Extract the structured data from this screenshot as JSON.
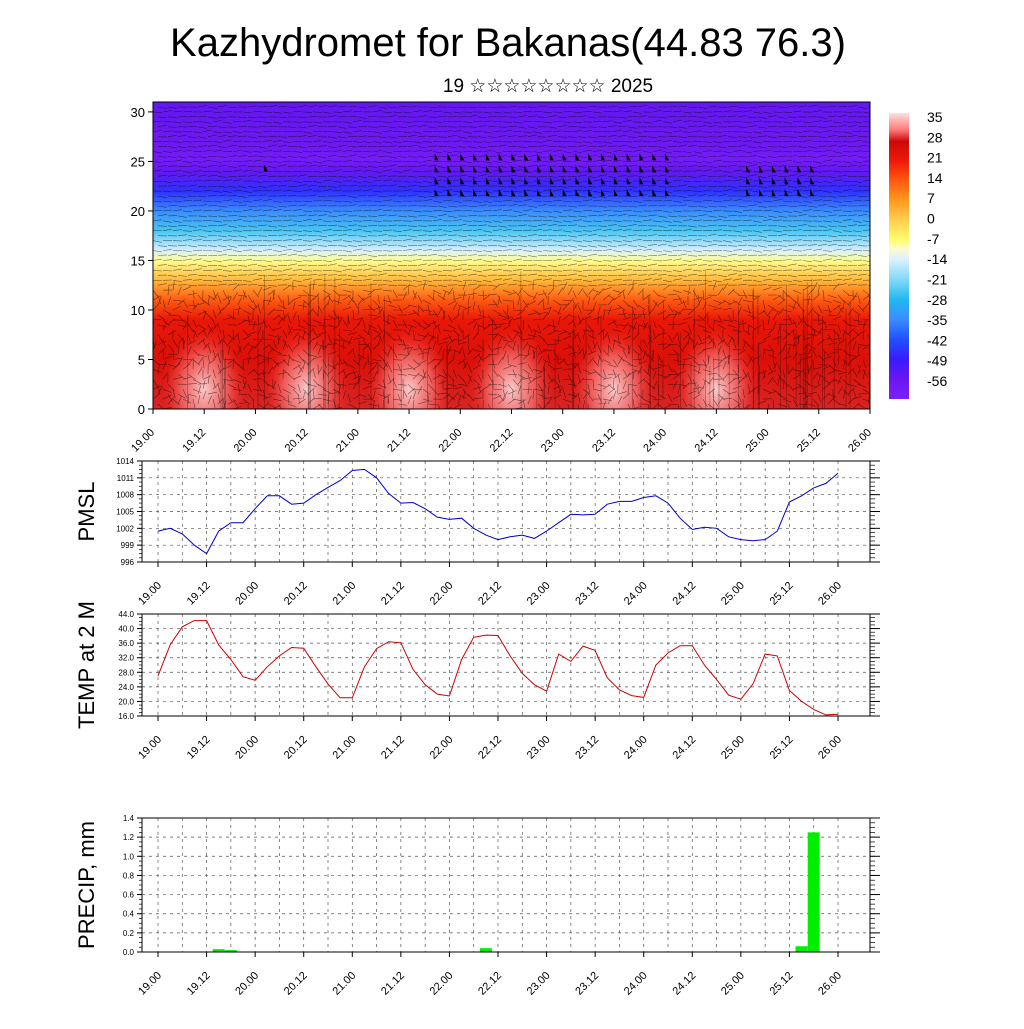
{
  "title": "Kazhydromet for Bakanas(44.83 76.3)",
  "subtitle": "19 ☆☆☆☆☆☆☆☆ 2025",
  "time_ticks": [
    "19.00",
    "19.12",
    "20.00",
    "20.12",
    "21.00",
    "21.12",
    "22.00",
    "22.12",
    "23.00",
    "23.12",
    "24.00",
    "24.12",
    "25.00",
    "25.12",
    "26.00"
  ],
  "chart_data": [
    {
      "type": "heatmap",
      "name": "cross-section",
      "y_ticks": [
        "0",
        "5",
        "10",
        "15",
        "20",
        "25",
        "30"
      ],
      "ylim": [
        0,
        31
      ],
      "colorbar": {
        "labels": [
          "35",
          "28",
          "21",
          "14",
          "7",
          "0",
          "-7",
          "-14",
          "-21",
          "-28",
          "-35",
          "-42",
          "-49",
          "-56"
        ],
        "range": [
          -63,
          38
        ]
      },
      "temp_profile": [
        {
          "height": 0,
          "value": 29
        },
        {
          "height": 5,
          "value": 25
        },
        {
          "height": 9,
          "value": 22
        },
        {
          "height": 11,
          "value": 14
        },
        {
          "height": 13,
          "value": 3
        },
        {
          "height": 15,
          "value": -8
        },
        {
          "height": 16,
          "value": -14
        },
        {
          "height": 18,
          "value": -25
        },
        {
          "height": 20,
          "value": -35
        },
        {
          "height": 22,
          "value": -46
        },
        {
          "height": 24,
          "value": -55
        },
        {
          "height": 25,
          "value": -60
        },
        {
          "height": 27,
          "value": -57
        },
        {
          "height": 31,
          "value": -55
        }
      ],
      "colors": {
        "warm": "#e00000",
        "cold": "#5a10e0",
        "mid": "#ffff90"
      }
    },
    {
      "type": "line",
      "ylabel": "PMSL",
      "y_ticks": [
        "1014",
        "1011",
        "1008",
        "1005",
        "1002",
        "999",
        "996"
      ],
      "ylim": [
        996,
        1014
      ],
      "color": "#0000cc",
      "x": [
        0,
        3,
        6,
        9,
        12,
        15,
        18,
        21,
        24,
        27,
        30,
        33,
        36,
        39,
        42,
        45,
        48,
        51,
        54,
        57,
        60,
        63,
        66,
        69,
        72,
        75,
        78,
        81,
        84,
        87,
        90,
        93,
        96,
        99,
        102,
        105,
        108,
        111,
        114,
        117,
        120,
        123,
        126,
        129,
        132,
        135,
        138,
        141,
        144,
        147,
        150,
        153,
        156,
        159,
        162,
        165,
        168
      ],
      "values": [
        1001.5,
        1002,
        1001,
        999,
        997.5,
        1001.5,
        1003,
        1003,
        1005.5,
        1007.8,
        1007.8,
        1006.3,
        1006.5,
        1008,
        1009.3,
        1010.5,
        1012.3,
        1012.5,
        1011,
        1008.2,
        1006.5,
        1006.6,
        1005.5,
        1004,
        1003.6,
        1003.8,
        1002,
        1000.8,
        1000,
        1000.5,
        1000.8,
        1000.2,
        1001.5,
        1003,
        1004.5,
        1004.4,
        1004.5,
        1006.3,
        1006.8,
        1006.8,
        1007.5,
        1007.8,
        1006.5,
        1003.8,
        1001.8,
        1002.2,
        1002,
        1000.5,
        1000,
        999.8,
        1000,
        1001.5,
        1006.7,
        1007.8,
        1009.2,
        1010,
        1011.8
      ],
      "colors": {
        "line": "#0000cc"
      }
    },
    {
      "type": "line",
      "ylabel": "TEMP at 2 M",
      "y_ticks": [
        "44.0",
        "40.0",
        "36.0",
        "32.0",
        "28.0",
        "24.0",
        "20.0",
        "16.0"
      ],
      "ylim": [
        16,
        44
      ],
      "x": [
        0,
        3,
        6,
        9,
        12,
        15,
        18,
        21,
        24,
        27,
        30,
        33,
        36,
        39,
        42,
        45,
        48,
        51,
        54,
        57,
        60,
        63,
        66,
        69,
        72,
        75,
        78,
        81,
        84,
        87,
        90,
        93,
        96,
        99,
        102,
        105,
        108,
        111,
        114,
        117,
        120,
        123,
        126,
        129,
        132,
        135,
        138,
        141,
        144,
        147,
        150,
        153,
        156,
        159,
        162,
        165,
        168
      ],
      "values": [
        27,
        35.5,
        40.5,
        42.2,
        42.2,
        35.5,
        31.5,
        26.8,
        25.8,
        29.5,
        32.5,
        34.8,
        34.6,
        29.5,
        24.8,
        21,
        21,
        29.5,
        34.5,
        36.4,
        36.1,
        28.8,
        24.6,
        22,
        21.5,
        31.5,
        37.6,
        38.2,
        38.1,
        32.5,
        27.7,
        24.6,
        22.8,
        33,
        31,
        35.2,
        34,
        26.5,
        23.2,
        21.6,
        21.1,
        30,
        33.3,
        35.3,
        35.3,
        30,
        26,
        21.7,
        20.6,
        24.8,
        33,
        32.5,
        23,
        20,
        17.8,
        16.3,
        16.5
      ],
      "colors": {
        "line": "#cc0000"
      }
    },
    {
      "type": "bar",
      "ylabel": "PRECIP, mm",
      "y_ticks": [
        "1.4",
        "1.2",
        "1.0",
        "0.8",
        "0.6",
        "0.4",
        "0.2",
        "0.0"
      ],
      "ylim": [
        0,
        1.4
      ],
      "bars": [
        {
          "x": 15,
          "value": 0.03
        },
        {
          "x": 18,
          "value": 0.02
        },
        {
          "x": 81,
          "value": 0.04
        },
        {
          "x": 159,
          "value": 0.06
        },
        {
          "x": 162,
          "value": 1.25
        }
      ],
      "colors": {
        "bar": "#00ee00"
      }
    }
  ]
}
